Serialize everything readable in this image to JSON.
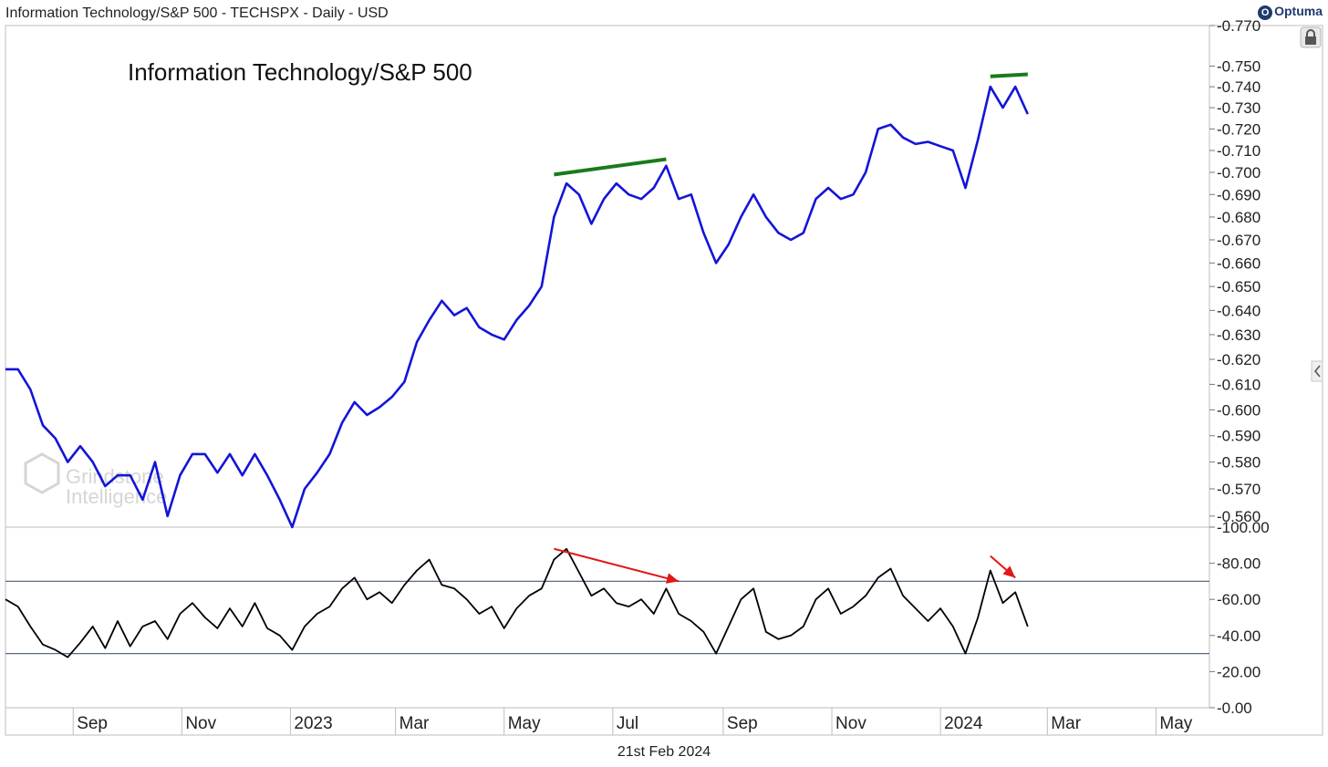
{
  "header": {
    "title": "Information Technology/S&P 500 - TECHSPX - Daily - USD",
    "brand": "Optuma"
  },
  "footer": {
    "date": "21st Feb 2024"
  },
  "watermark": {
    "line1": "Grindstone",
    "line2": "Intelligence"
  },
  "colors": {
    "price": "#1414d8",
    "indicator": "#000000",
    "trendline": "#1a7a1a",
    "arrow": "#e01818",
    "band": "#5a6b85",
    "grid": "#d0d0d0"
  },
  "chart_data": [
    {
      "type": "line",
      "title": "Information Technology/S&P 500",
      "xlabel": "",
      "ylabel": "",
      "ylim": [
        0.556,
        0.77
      ],
      "y_scale": "log",
      "y_ticks": [
        "0.770",
        "0.750",
        "0.740",
        "0.730",
        "0.720",
        "0.710",
        "0.700",
        "0.690",
        "0.680",
        "0.670",
        "0.660",
        "0.650",
        "0.640",
        "0.630",
        "0.620",
        "0.610",
        "0.600",
        "0.590",
        "0.580",
        "0.570",
        "0.560"
      ],
      "x_ticks": [
        "Sep",
        "Nov",
        "2023",
        "Mar",
        "May",
        "Jul",
        "Sep",
        "Nov",
        "2024",
        "Mar",
        "May"
      ],
      "x_range": [
        "2022-07-25",
        "2024-05-31"
      ],
      "series": [
        {
          "points": [
            [
              "2022-07-25",
              0.616
            ],
            [
              "2022-08-01",
              0.616
            ],
            [
              "2022-08-08",
              0.608
            ],
            [
              "2022-08-15",
              0.594
            ],
            [
              "2022-08-22",
              0.589
            ],
            [
              "2022-08-29",
              0.58
            ],
            [
              "2022-09-05",
              0.586
            ],
            [
              "2022-09-12",
              0.58
            ],
            [
              "2022-09-19",
              0.571
            ],
            [
              "2022-09-26",
              0.575
            ],
            [
              "2022-10-03",
              0.575
            ],
            [
              "2022-10-10",
              0.566
            ],
            [
              "2022-10-17",
              0.58
            ],
            [
              "2022-10-24",
              0.56
            ],
            [
              "2022-10-31",
              0.575
            ],
            [
              "2022-11-07",
              0.583
            ],
            [
              "2022-11-14",
              0.583
            ],
            [
              "2022-11-21",
              0.576
            ],
            [
              "2022-11-28",
              0.583
            ],
            [
              "2022-12-05",
              0.575
            ],
            [
              "2022-12-12",
              0.583
            ],
            [
              "2022-12-19",
              0.575
            ],
            [
              "2022-12-26",
              0.566
            ],
            [
              "2023-01-02",
              0.556
            ],
            [
              "2023-01-09",
              0.57
            ],
            [
              "2023-01-16",
              0.576
            ],
            [
              "2023-01-23",
              0.583
            ],
            [
              "2023-01-30",
              0.595
            ],
            [
              "2023-02-06",
              0.603
            ],
            [
              "2023-02-13",
              0.598
            ],
            [
              "2023-02-20",
              0.601
            ],
            [
              "2023-02-27",
              0.605
            ],
            [
              "2023-03-06",
              0.611
            ],
            [
              "2023-03-13",
              0.627
            ],
            [
              "2023-03-20",
              0.636
            ],
            [
              "2023-03-27",
              0.644
            ],
            [
              "2023-04-03",
              0.638
            ],
            [
              "2023-04-10",
              0.641
            ],
            [
              "2023-04-17",
              0.633
            ],
            [
              "2023-04-24",
              0.63
            ],
            [
              "2023-05-01",
              0.628
            ],
            [
              "2023-05-08",
              0.636
            ],
            [
              "2023-05-15",
              0.642
            ],
            [
              "2023-05-22",
              0.65
            ],
            [
              "2023-05-29",
              0.68
            ],
            [
              "2023-06-05",
              0.695
            ],
            [
              "2023-06-12",
              0.69
            ],
            [
              "2023-06-19",
              0.677
            ],
            [
              "2023-06-26",
              0.688
            ],
            [
              "2023-07-03",
              0.695
            ],
            [
              "2023-07-10",
              0.69
            ],
            [
              "2023-07-17",
              0.688
            ],
            [
              "2023-07-24",
              0.693
            ],
            [
              "2023-07-31",
              0.703
            ],
            [
              "2023-08-07",
              0.688
            ],
            [
              "2023-08-14",
              0.69
            ],
            [
              "2023-08-21",
              0.673
            ],
            [
              "2023-08-28",
              0.66
            ],
            [
              "2023-09-04",
              0.668
            ],
            [
              "2023-09-11",
              0.68
            ],
            [
              "2023-09-18",
              0.69
            ],
            [
              "2023-09-25",
              0.68
            ],
            [
              "2023-10-02",
              0.673
            ],
            [
              "2023-10-09",
              0.67
            ],
            [
              "2023-10-16",
              0.673
            ],
            [
              "2023-10-23",
              0.688
            ],
            [
              "2023-10-30",
              0.693
            ],
            [
              "2023-11-06",
              0.688
            ],
            [
              "2023-11-13",
              0.69
            ],
            [
              "2023-11-20",
              0.7
            ],
            [
              "2023-11-27",
              0.72
            ],
            [
              "2023-12-04",
              0.722
            ],
            [
              "2023-12-11",
              0.716
            ],
            [
              "2023-12-18",
              0.713
            ],
            [
              "2023-12-25",
              0.714
            ],
            [
              "2024-01-01",
              0.712
            ],
            [
              "2024-01-08",
              0.71
            ],
            [
              "2024-01-15",
              0.693
            ],
            [
              "2024-01-22",
              0.715
            ],
            [
              "2024-01-29",
              0.74
            ],
            [
              "2024-02-05",
              0.73
            ],
            [
              "2024-02-12",
              0.74
            ],
            [
              "2024-02-19",
              0.727
            ]
          ]
        }
      ],
      "trendlines": [
        {
          "from": [
            "2023-05-29",
            0.699
          ],
          "to": [
            "2023-07-31",
            0.706
          ]
        },
        {
          "from": [
            "2024-01-29",
            0.745
          ],
          "to": [
            "2024-02-19",
            0.746
          ]
        }
      ]
    },
    {
      "type": "line",
      "title": "",
      "ylim": [
        0,
        100
      ],
      "y_ticks": [
        "100.00",
        "80.00",
        "60.00",
        "40.00",
        "20.00",
        "0.00"
      ],
      "bands": [
        70,
        30
      ],
      "x_range": [
        "2022-07-25",
        "2024-05-31"
      ],
      "series": [
        {
          "points": [
            [
              "2022-07-25",
              60
            ],
            [
              "2022-08-01",
              56
            ],
            [
              "2022-08-08",
              45
            ],
            [
              "2022-08-15",
              35
            ],
            [
              "2022-08-22",
              32
            ],
            [
              "2022-08-29",
              28
            ],
            [
              "2022-09-05",
              36
            ],
            [
              "2022-09-12",
              45
            ],
            [
              "2022-09-19",
              33
            ],
            [
              "2022-09-26",
              48
            ],
            [
              "2022-10-03",
              34
            ],
            [
              "2022-10-10",
              45
            ],
            [
              "2022-10-17",
              48
            ],
            [
              "2022-10-24",
              38
            ],
            [
              "2022-10-31",
              52
            ],
            [
              "2022-11-07",
              58
            ],
            [
              "2022-11-14",
              50
            ],
            [
              "2022-11-21",
              44
            ],
            [
              "2022-11-28",
              55
            ],
            [
              "2022-12-05",
              45
            ],
            [
              "2022-12-12",
              58
            ],
            [
              "2022-12-19",
              44
            ],
            [
              "2022-12-26",
              40
            ],
            [
              "2023-01-02",
              32
            ],
            [
              "2023-01-09",
              45
            ],
            [
              "2023-01-16",
              52
            ],
            [
              "2023-01-23",
              56
            ],
            [
              "2023-01-30",
              66
            ],
            [
              "2023-02-06",
              72
            ],
            [
              "2023-02-13",
              60
            ],
            [
              "2023-02-20",
              64
            ],
            [
              "2023-02-27",
              58
            ],
            [
              "2023-03-06",
              68
            ],
            [
              "2023-03-13",
              76
            ],
            [
              "2023-03-20",
              82
            ],
            [
              "2023-03-27",
              68
            ],
            [
              "2023-04-03",
              66
            ],
            [
              "2023-04-10",
              60
            ],
            [
              "2023-04-17",
              52
            ],
            [
              "2023-04-24",
              56
            ],
            [
              "2023-05-01",
              44
            ],
            [
              "2023-05-08",
              55
            ],
            [
              "2023-05-15",
              62
            ],
            [
              "2023-05-22",
              66
            ],
            [
              "2023-05-29",
              82
            ],
            [
              "2023-06-05",
              88
            ],
            [
              "2023-06-12",
              75
            ],
            [
              "2023-06-19",
              62
            ],
            [
              "2023-06-26",
              66
            ],
            [
              "2023-07-03",
              58
            ],
            [
              "2023-07-10",
              56
            ],
            [
              "2023-07-17",
              60
            ],
            [
              "2023-07-24",
              52
            ],
            [
              "2023-07-31",
              66
            ],
            [
              "2023-08-07",
              52
            ],
            [
              "2023-08-14",
              48
            ],
            [
              "2023-08-21",
              42
            ],
            [
              "2023-08-28",
              30
            ],
            [
              "2023-09-04",
              45
            ],
            [
              "2023-09-11",
              60
            ],
            [
              "2023-09-18",
              66
            ],
            [
              "2023-09-25",
              42
            ],
            [
              "2023-10-02",
              38
            ],
            [
              "2023-10-09",
              40
            ],
            [
              "2023-10-16",
              45
            ],
            [
              "2023-10-23",
              60
            ],
            [
              "2023-10-30",
              66
            ],
            [
              "2023-11-06",
              52
            ],
            [
              "2023-11-13",
              56
            ],
            [
              "2023-11-20",
              62
            ],
            [
              "2023-11-27",
              72
            ],
            [
              "2023-12-04",
              77
            ],
            [
              "2023-12-11",
              62
            ],
            [
              "2023-12-18",
              55
            ],
            [
              "2023-12-25",
              48
            ],
            [
              "2024-01-01",
              55
            ],
            [
              "2024-01-08",
              45
            ],
            [
              "2024-01-15",
              30
            ],
            [
              "2024-01-22",
              50
            ],
            [
              "2024-01-29",
              76
            ],
            [
              "2024-02-05",
              58
            ],
            [
              "2024-02-12",
              64
            ],
            [
              "2024-02-19",
              45
            ]
          ]
        }
      ],
      "arrows": [
        {
          "from": [
            "2023-05-29",
            88
          ],
          "to": [
            "2023-08-07",
            70
          ]
        },
        {
          "from": [
            "2024-01-29",
            84
          ],
          "to": [
            "2024-02-12",
            72
          ]
        }
      ]
    }
  ],
  "x_axis_date_ticks": [
    "2022-09-01",
    "2022-11-01",
    "2023-01-01",
    "2023-03-01",
    "2023-05-01",
    "2023-07-01",
    "2023-09-01",
    "2023-11-01",
    "2024-01-01",
    "2024-03-01",
    "2024-05-01"
  ]
}
